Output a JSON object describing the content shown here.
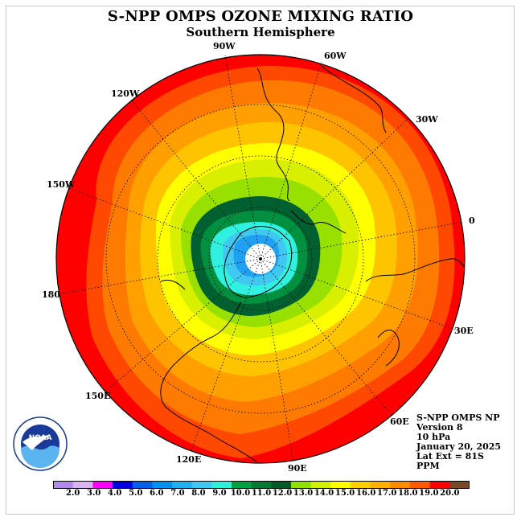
{
  "header": {
    "title": "S-NPP OMPS OZONE MIXING RATIO",
    "subtitle": "Southern Hemisphere"
  },
  "logo": {
    "name": "noaa-logo",
    "text": "NOAA",
    "ring_text": "NATIONAL OCEANIC AND ATMOSPHERIC ADMINISTRATION • U.S. DEPARTMENT OF COMMERCE"
  },
  "info": {
    "instrument": "S-NPP OMPS NP",
    "version": "Version 8",
    "level": "10 hPa",
    "date": "January 20, 2025",
    "lat_ext": "Lat Ext = 81S",
    "units": "PPM"
  },
  "longitude_labels": [
    "90W",
    "60W",
    "30W",
    "0",
    "30E",
    "60E",
    "90E",
    "120E",
    "150E",
    "180",
    "150W",
    "120W"
  ],
  "colorbar": {
    "labels": [
      "2.0",
      "3.0",
      "4.0",
      "5.0",
      "6.0",
      "7.0",
      "8.0",
      "9.0",
      "10.0",
      "11.0",
      "12.0",
      "13.0",
      "14.0",
      "15.0",
      "16.0",
      "17.0",
      "18.0",
      "19.0",
      "20.0"
    ],
    "colors": [
      "#b08ae6",
      "#d8b4f0",
      "#ff00ff",
      "#0000e0",
      "#0060e8",
      "#0090f0",
      "#20b0f0",
      "#40c8f0",
      "#30f0d8",
      "#00a040",
      "#007a30",
      "#005a28",
      "#90e000",
      "#d0f000",
      "#ffff00",
      "#ffd000",
      "#ffb000",
      "#ff8c00",
      "#ff5a00",
      "#ff0000",
      "#784828"
    ]
  },
  "contour_colors": {
    "red": "#ff0000",
    "red_orange": "#ff4800",
    "orange": "#ff7a00",
    "orange_light": "#ffa000",
    "gold": "#ffc400",
    "yellow": "#ffff00",
    "yellow_green": "#d8f000",
    "lime": "#98e000",
    "green": "#009040",
    "dark_green": "#006030",
    "cyan": "#30f0e0",
    "light_blue": "#40c8f0",
    "blue": "#20a0f0",
    "pole": "#ffffff"
  }
}
